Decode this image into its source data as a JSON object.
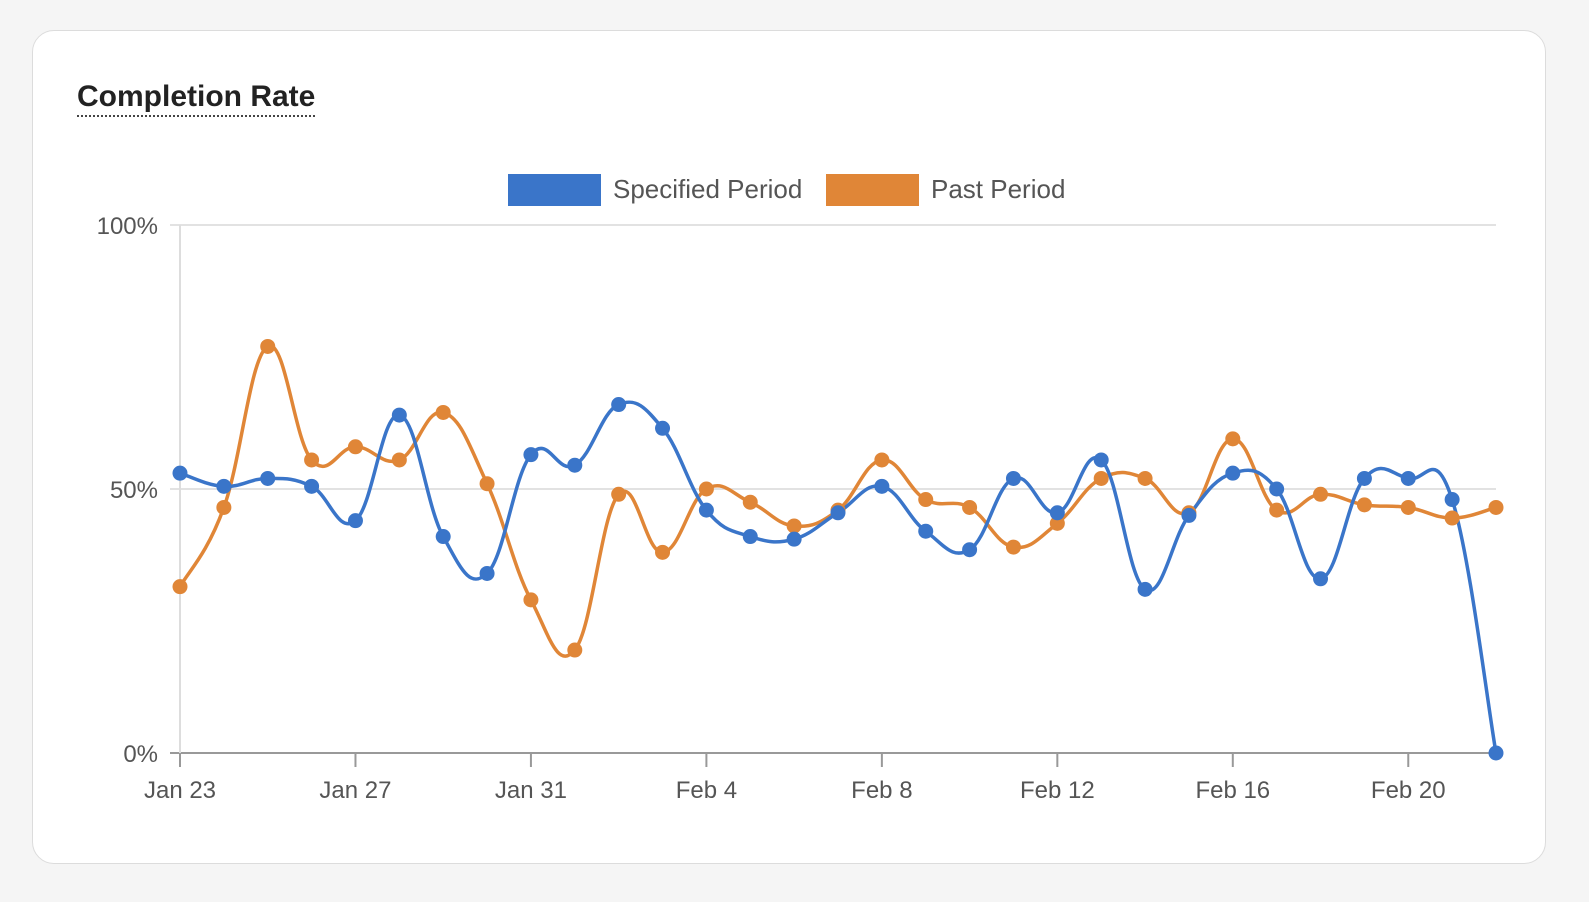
{
  "card": {
    "title": "Completion Rate"
  },
  "chart_data": {
    "type": "line",
    "title": "Completion Rate",
    "xlabel": "",
    "ylabel": "",
    "x": [
      "Jan 23",
      "Jan 24",
      "Jan 25",
      "Jan 26",
      "Jan 27",
      "Jan 28",
      "Jan 29",
      "Jan 30",
      "Jan 31",
      "Feb 1",
      "Feb 2",
      "Feb 3",
      "Feb 4",
      "Feb 5",
      "Feb 6",
      "Feb 7",
      "Feb 8",
      "Feb 9",
      "Feb 10",
      "Feb 11",
      "Feb 12",
      "Feb 13",
      "Feb 14",
      "Feb 15",
      "Feb 16",
      "Feb 17",
      "Feb 18",
      "Feb 19",
      "Feb 20",
      "Feb 21",
      "Feb 22"
    ],
    "x_tick_labels": [
      "Jan 23",
      "Jan 27",
      "Jan 31",
      "Feb 4",
      "Feb 8",
      "Feb 12",
      "Feb 16",
      "Feb 20"
    ],
    "x_tick_indices": [
      0,
      4,
      8,
      12,
      16,
      20,
      24,
      28
    ],
    "ylim": [
      0,
      100
    ],
    "y_ticks": [
      0,
      50,
      100
    ],
    "y_tick_labels": [
      "0%",
      "50%",
      "100%"
    ],
    "grid": true,
    "legend_position": "top",
    "series": [
      {
        "name": "Specified Period",
        "color": "#3a75c9",
        "values": [
          53,
          50.5,
          52,
          50.5,
          44,
          64,
          41,
          34,
          56.5,
          54.5,
          66,
          61.5,
          46,
          41,
          40.5,
          45.5,
          50.5,
          42,
          38.5,
          52,
          45.5,
          55.5,
          31,
          45,
          53,
          50,
          33,
          52,
          52,
          48,
          0
        ]
      },
      {
        "name": "Past Period",
        "color": "#e08637",
        "values": [
          31.5,
          46.5,
          77,
          55.5,
          58,
          55.5,
          64.5,
          51,
          29,
          19.5,
          49,
          38,
          50,
          47.5,
          43,
          46,
          55.5,
          48,
          46.5,
          39,
          43.5,
          52,
          52,
          45.5,
          59.5,
          46,
          49,
          47,
          46.5,
          44.5,
          46.5
        ]
      }
    ]
  }
}
